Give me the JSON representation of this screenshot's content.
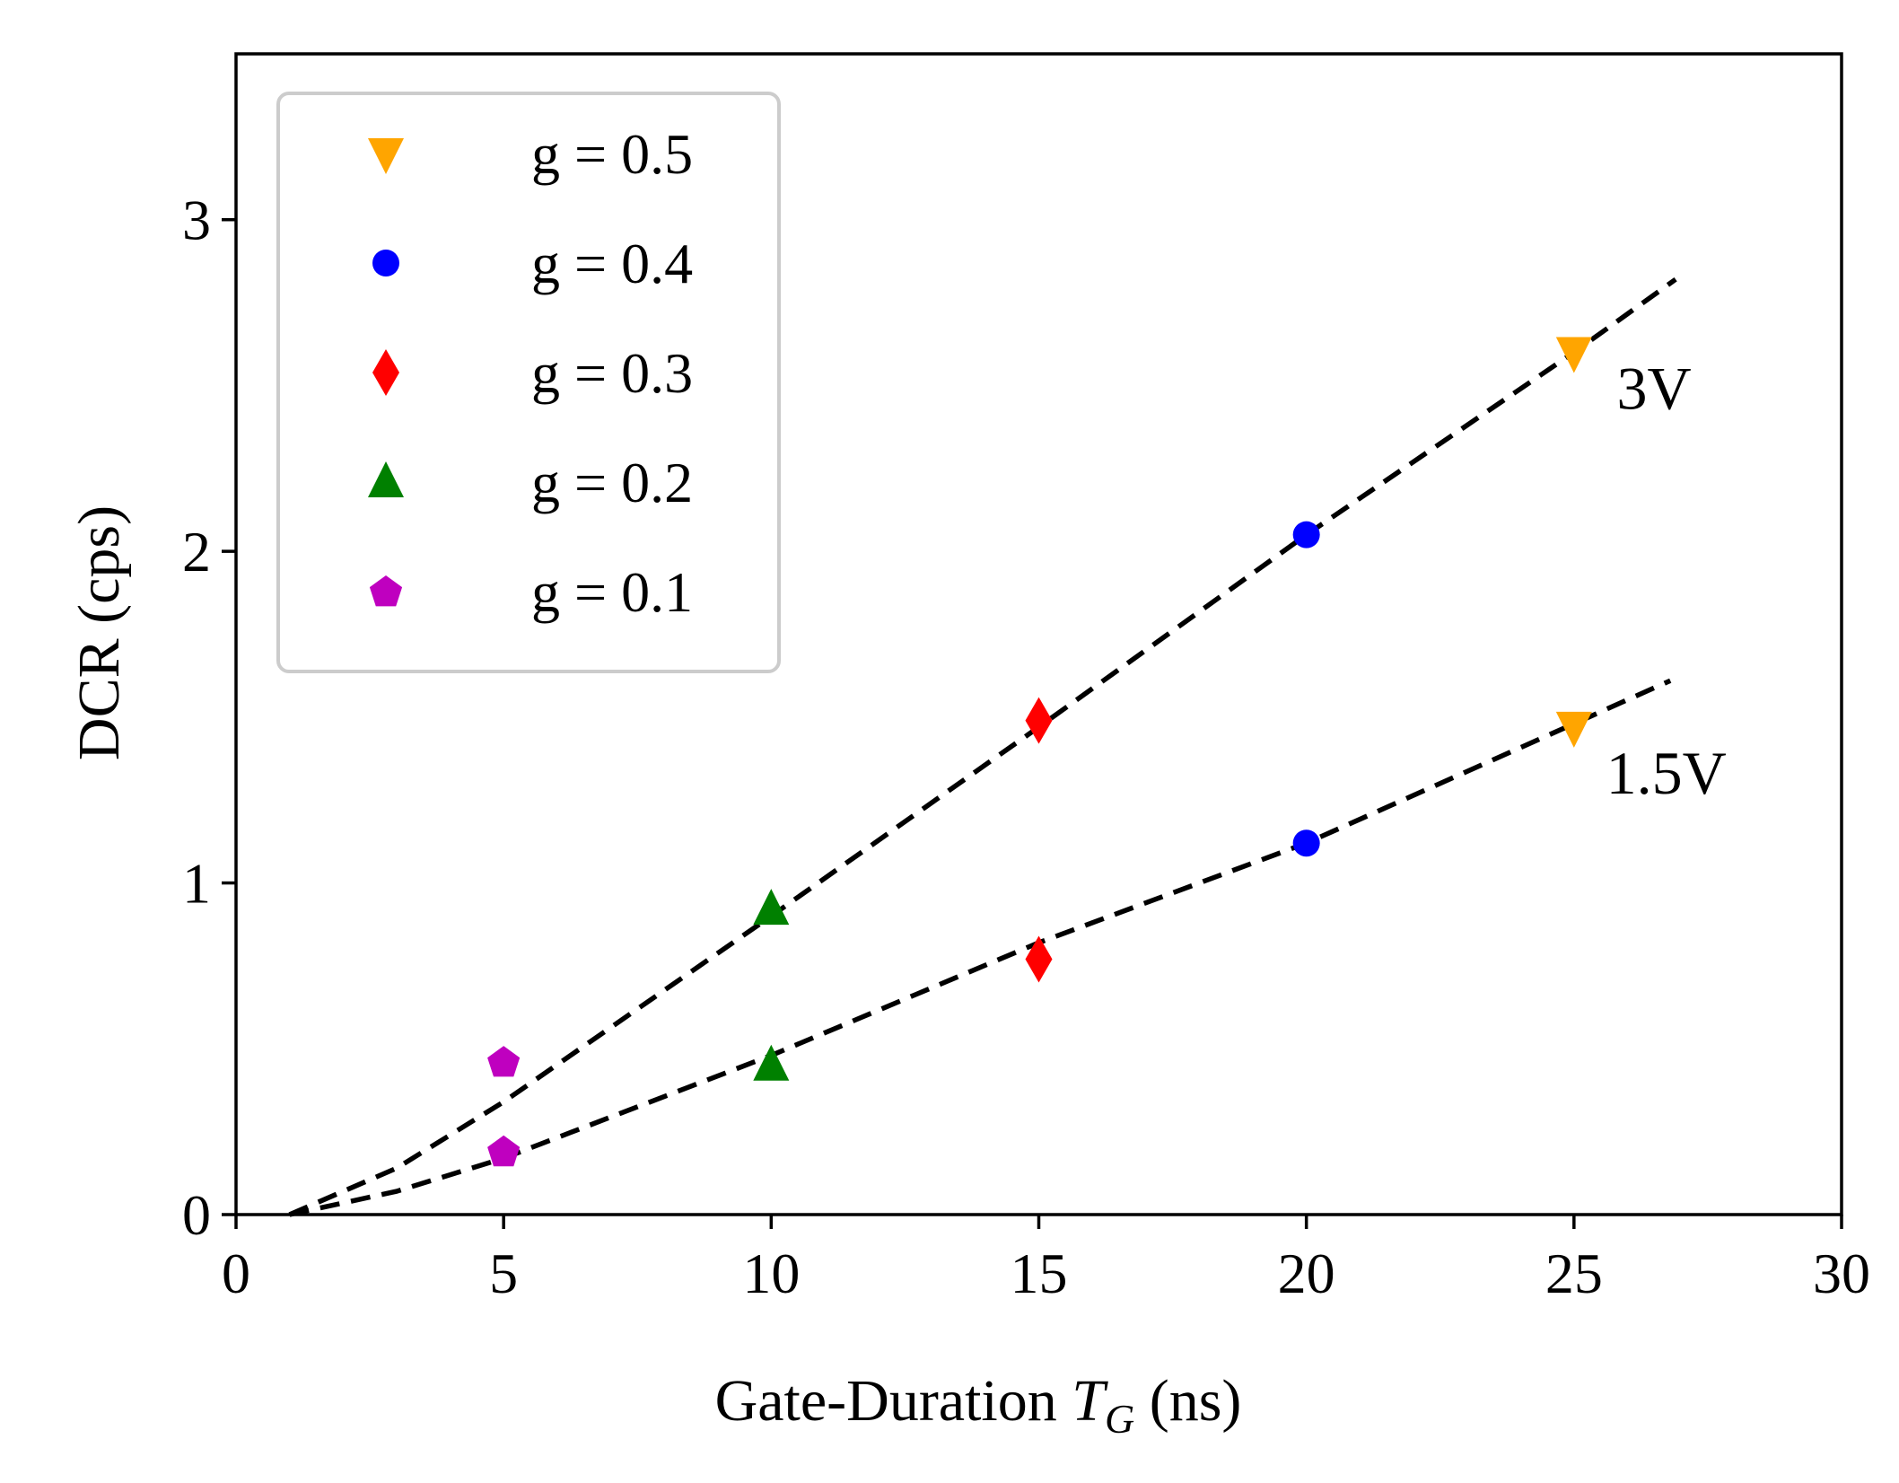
{
  "chart_data": {
    "type": "scatter",
    "xlabel_main": "Gate-Duration ",
    "xlabel_sym": "T",
    "xlabel_sub": "G",
    "xlabel_unit": " (ns)",
    "ylabel": "DCR (cps)",
    "xlim": [
      0,
      30
    ],
    "ylim": [
      0,
      3.5
    ],
    "xticks": [
      "0",
      "5",
      "10",
      "15",
      "20",
      "25",
      "30"
    ],
    "yticks": [
      "0",
      "1",
      "2",
      "3"
    ],
    "legend_position": "top-left",
    "series": [
      {
        "name": "g = 0.5",
        "marker": "triangle-down",
        "color": "#FFA500",
        "points": [
          [
            25,
            2.6
          ],
          [
            25,
            1.47
          ]
        ]
      },
      {
        "name": "g = 0.4",
        "marker": "circle",
        "color": "#0000FF",
        "points": [
          [
            20,
            2.05
          ],
          [
            20,
            1.12
          ]
        ]
      },
      {
        "name": "g = 0.3",
        "marker": "diamond",
        "color": "#FF0000",
        "points": [
          [
            15,
            1.49
          ],
          [
            15,
            0.77
          ]
        ]
      },
      {
        "name": "g = 0.2",
        "marker": "triangle-up",
        "color": "#008000",
        "points": [
          [
            10,
            0.92
          ],
          [
            10,
            0.45
          ]
        ]
      },
      {
        "name": "g = 0.1",
        "marker": "pentagon",
        "color": "#BF00BF",
        "points": [
          [
            5,
            0.46
          ],
          [
            5,
            0.19
          ]
        ]
      }
    ],
    "fit_lines": [
      {
        "label": "3V",
        "points": [
          [
            1,
            0
          ],
          [
            3,
            0.14
          ],
          [
            5,
            0.34
          ],
          [
            10,
            0.9
          ],
          [
            15,
            1.47
          ],
          [
            20,
            2.05
          ],
          [
            25,
            2.6
          ],
          [
            26.9,
            2.82
          ]
        ],
        "label_at": [
          25.8,
          2.43
        ]
      },
      {
        "label": "1.5V",
        "points": [
          [
            1,
            0
          ],
          [
            3,
            0.07
          ],
          [
            5,
            0.17
          ],
          [
            10,
            0.48
          ],
          [
            15,
            0.82
          ],
          [
            20,
            1.12
          ],
          [
            25,
            1.48
          ],
          [
            26.8,
            1.61
          ]
        ],
        "label_at": [
          25.6,
          1.27
        ]
      }
    ]
  }
}
